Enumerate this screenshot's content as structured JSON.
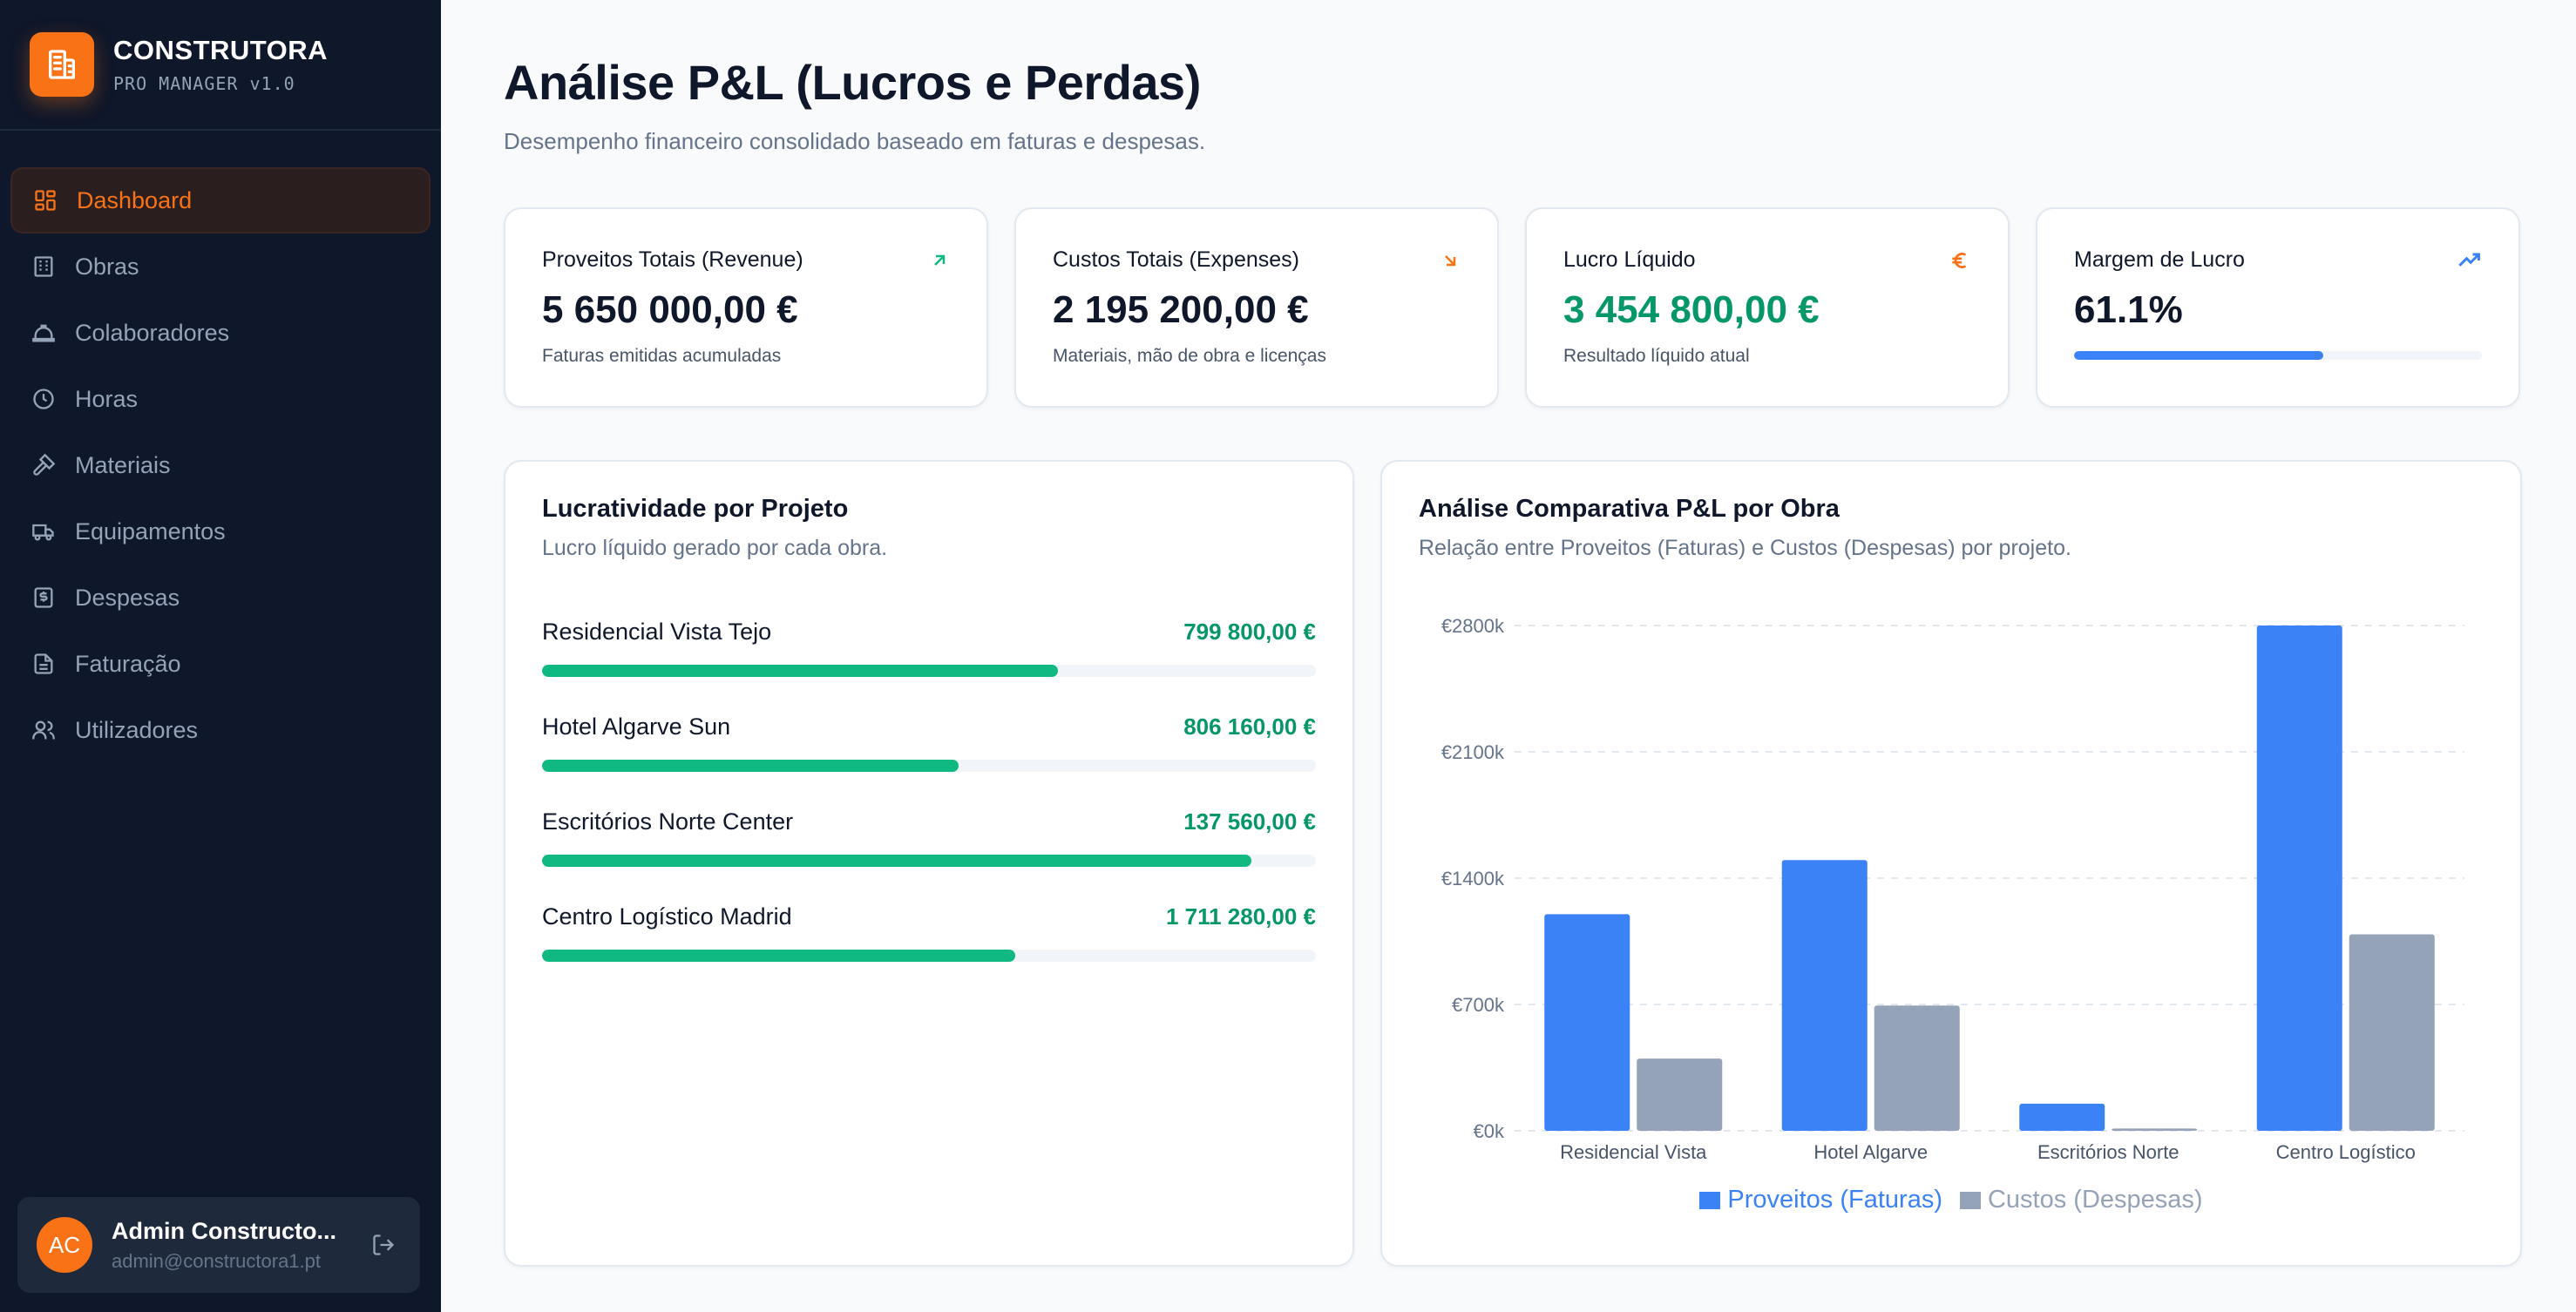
{
  "brand": {
    "name": "CONSTRUTORA",
    "subtitle": "PRO MANAGER v1.0"
  },
  "sidebar": {
    "items": [
      {
        "label": "Dashboard",
        "icon": "dashboard-icon",
        "active": true
      },
      {
        "label": "Obras",
        "icon": "building-icon",
        "active": false
      },
      {
        "label": "Colaboradores",
        "icon": "hardhat-icon",
        "active": false
      },
      {
        "label": "Horas",
        "icon": "clock-icon",
        "active": false
      },
      {
        "label": "Materiais",
        "icon": "hammer-icon",
        "active": false
      },
      {
        "label": "Equipamentos",
        "icon": "truck-icon",
        "active": false
      },
      {
        "label": "Despesas",
        "icon": "dollar-receipt-icon",
        "active": false
      },
      {
        "label": "Faturação",
        "icon": "document-icon",
        "active": false
      },
      {
        "label": "Utilizadores",
        "icon": "users-icon",
        "active": false
      }
    ]
  },
  "user": {
    "initials": "AC",
    "name": "Admin Constructo...",
    "email": "admin@constructora1.pt"
  },
  "header": {
    "title": "Análise P&L (Lucros e Perdas)",
    "subtitle": "Desempenho financeiro consolidado baseado em faturas e despesas."
  },
  "kpis": [
    {
      "label": "Proveitos Totais (Revenue)",
      "value": "5 650 000,00 €",
      "note": "Faturas emitidas acumuladas",
      "icon": "arrow-up-right-icon",
      "icon_color": "#10b981"
    },
    {
      "label": "Custos Totais (Expenses)",
      "value": "2 195 200,00 €",
      "note": "Materiais, mão de obra e licenças",
      "icon": "arrow-down-right-icon",
      "icon_color": "#f97316"
    },
    {
      "label": "Lucro Líquido",
      "value": "3 454 800,00 €",
      "note": "Resultado líquido atual",
      "icon": "euro-icon",
      "icon_color": "#f97316"
    },
    {
      "label": "Margem de Lucro",
      "value": "61.1%",
      "progress": 0.611,
      "icon": "trending-up-icon",
      "icon_color": "#3b82f6"
    }
  ],
  "projects_panel": {
    "title": "Lucratividade por Projeto",
    "subtitle": "Lucro líquido gerado por cada obra.",
    "items": [
      {
        "name": "Residencial Vista Tejo",
        "value": "799 800,00 €",
        "progress": 0.667
      },
      {
        "name": "Hotel Algarve Sun",
        "value": "806 160,00 €",
        "progress": 0.538
      },
      {
        "name": "Escritórios Norte Center",
        "value": "137 560,00 €",
        "progress": 0.917
      },
      {
        "name": "Centro Logístico Madrid",
        "value": "1 711 280,00 €",
        "progress": 0.611
      }
    ]
  },
  "chart_panel": {
    "title": "Análise Comparativa P&L por Obra",
    "subtitle": "Relação entre Proveitos (Faturas) e Custos (Despesas) por projeto."
  },
  "chart_data": {
    "type": "bar",
    "categories": [
      "Residencial Vista",
      "Hotel Algarve",
      "Escritórios Norte",
      "Centro Logístico"
    ],
    "series": [
      {
        "name": "Proveitos (Faturas)",
        "color": "#3b82f6",
        "values": [
          1200000,
          1500000,
          150000,
          2800000
        ]
      },
      {
        "name": "Custos (Despesas)",
        "color": "#94a3b8",
        "values": [
          400200,
          693840,
          12440,
          1088720
        ]
      }
    ],
    "yticks": [
      "€0k",
      "€700k",
      "€1400k",
      "€2100k",
      "€2800k"
    ],
    "ylim": [
      0,
      2800000
    ],
    "grid": true,
    "legend": "bottom"
  }
}
